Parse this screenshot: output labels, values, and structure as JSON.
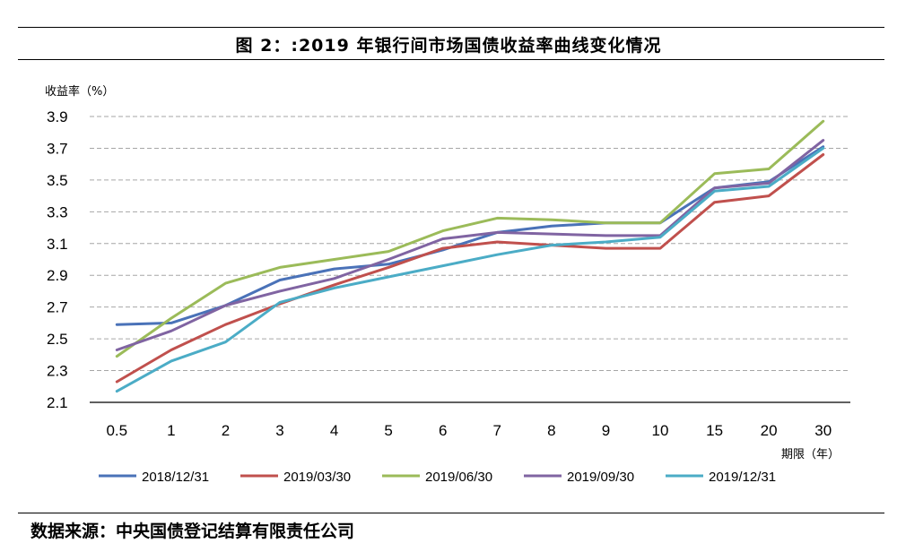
{
  "figure": {
    "title": "图 2：:2019 年银行间市场国债收益率曲线变化情况",
    "source": "数据来源：中央国债登记结算有限责任公司"
  },
  "chart_data": {
    "type": "line",
    "title": "图 2：:2019 年银行间市场国债收益率曲线变化情况",
    "ylabel": "收益率（%）",
    "xlabel": "期限（年）",
    "categories": [
      "0.5",
      "1",
      "2",
      "3",
      "4",
      "5",
      "6",
      "7",
      "8",
      "9",
      "10",
      "15",
      "20",
      "30"
    ],
    "ylim": [
      2.1,
      3.9
    ],
    "yticks": [
      "2.1",
      "2.3",
      "2.5",
      "2.7",
      "2.9",
      "3.1",
      "3.3",
      "3.5",
      "3.7",
      "3.9"
    ],
    "grid": "horizontal dashed",
    "legend_position": "bottom",
    "series": [
      {
        "name": "2018/12/31",
        "color": "#4a72b8",
        "values": [
          2.59,
          2.6,
          2.71,
          2.87,
          2.94,
          2.97,
          3.06,
          3.17,
          3.21,
          3.23,
          3.23,
          3.45,
          3.49,
          3.71
        ]
      },
      {
        "name": "2019/03/30",
        "color": "#c0504d",
        "values": [
          2.23,
          2.43,
          2.59,
          2.72,
          2.84,
          2.95,
          3.07,
          3.11,
          3.09,
          3.07,
          3.07,
          3.36,
          3.4,
          3.66
        ]
      },
      {
        "name": "2019/06/30",
        "color": "#9bbb59",
        "values": [
          2.39,
          2.63,
          2.85,
          2.95,
          3.0,
          3.05,
          3.18,
          3.26,
          3.25,
          3.23,
          3.23,
          3.54,
          3.57,
          3.87
        ]
      },
      {
        "name": "2019/09/30",
        "color": "#8064a2",
        "values": [
          2.43,
          2.55,
          2.71,
          2.8,
          2.88,
          3.0,
          3.13,
          3.17,
          3.16,
          3.15,
          3.15,
          3.45,
          3.48,
          3.75
        ]
      },
      {
        "name": "2019/12/31",
        "color": "#4bacc6",
        "values": [
          2.17,
          2.36,
          2.48,
          2.73,
          2.82,
          2.89,
          2.96,
          3.03,
          3.09,
          3.11,
          3.14,
          3.43,
          3.46,
          3.7
        ]
      }
    ]
  }
}
